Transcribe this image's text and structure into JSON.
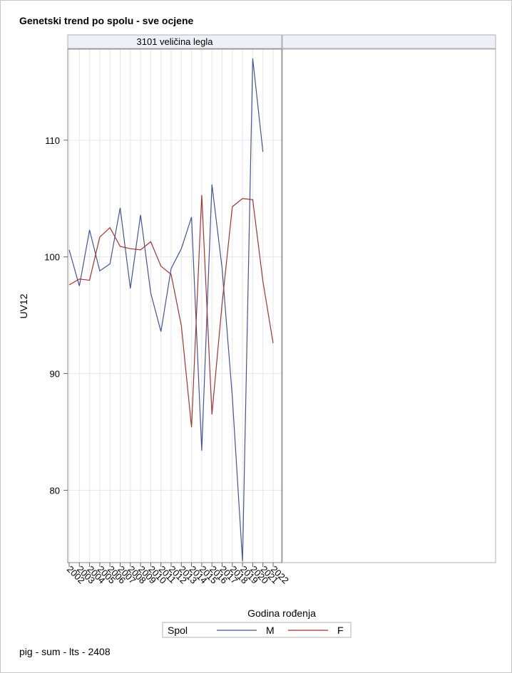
{
  "title": "Genetski trend po spolu - sve ocjene",
  "footer": "pig - sum - lts - 2408",
  "chart_data": {
    "type": "line",
    "panel_label": "3101 veličina legla",
    "xlabel": "Godina rođenja",
    "ylabel": "UV12",
    "x": [
      "2002",
      "2003",
      "2004",
      "2005",
      "2006",
      "2007",
      "2008",
      "2009",
      "2010",
      "2011",
      "2012",
      "2013",
      "2014",
      "2015",
      "2016",
      "2017",
      "2018",
      "2019",
      "2020",
      "2021",
      "2022"
    ],
    "yticks": [
      80,
      90,
      100,
      110
    ],
    "ylim": [
      73.8,
      117.8
    ],
    "grid": true,
    "legend_title": "Spol",
    "legend_position": "bottom",
    "series": [
      {
        "name": "M",
        "color": "#44549a",
        "values": [
          100.6,
          97.5,
          102.3,
          98.8,
          99.4,
          104.2,
          97.3,
          103.6,
          96.9,
          93.6,
          99.0,
          100.7,
          103.4,
          83.4,
          106.2,
          99.0,
          88.0,
          73.9,
          117.0,
          109.0,
          null
        ]
      },
      {
        "name": "F",
        "color": "#a8322e",
        "values": [
          97.6,
          98.1,
          98.0,
          101.7,
          102.5,
          100.9,
          100.7,
          100.6,
          101.3,
          99.2,
          98.5,
          94.1,
          85.4,
          105.3,
          86.5,
          96.0,
          104.3,
          105.0,
          104.9,
          97.9,
          92.6
        ]
      }
    ]
  }
}
